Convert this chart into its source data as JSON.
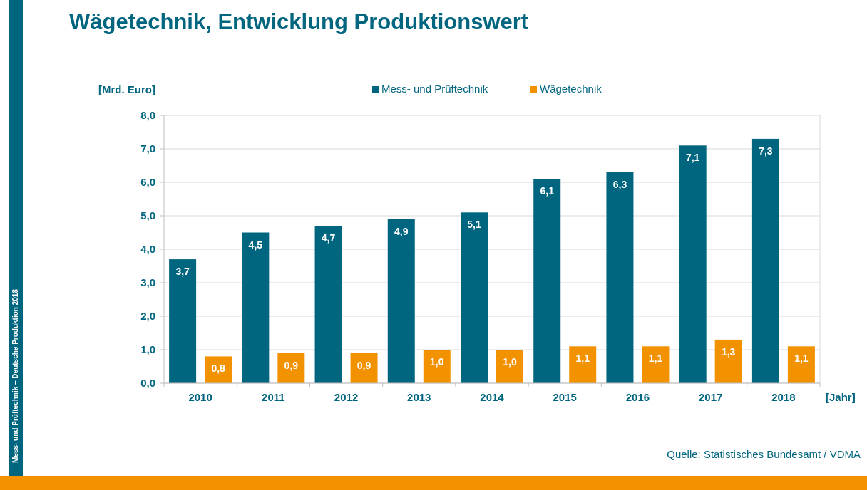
{
  "chart_data": {
    "type": "bar",
    "title": "Wägetechnik, Entwicklung Produktionswert",
    "xlabel": "[Jahr]",
    "ylabel": "[Mrd. Euro]",
    "categories": [
      "2010",
      "2011",
      "2012",
      "2013",
      "2014",
      "2015",
      "2016",
      "2017",
      "2018"
    ],
    "series": [
      {
        "name": "Mess- und Prüftechnik",
        "color": "#00657f",
        "values": [
          3.7,
          4.5,
          4.7,
          4.9,
          5.1,
          6.1,
          6.3,
          7.1,
          7.3
        ],
        "value_labels": [
          "3,7",
          "4,5",
          "4,7",
          "4,9",
          "5,1",
          "6,1",
          "6,3",
          "7,1",
          "7,3"
        ]
      },
      {
        "name": "Wägetechnik",
        "color": "#f39200",
        "values": [
          0.8,
          0.9,
          0.9,
          1.0,
          1.0,
          1.1,
          1.1,
          1.3,
          1.1
        ],
        "value_labels": [
          "0,8",
          "0,9",
          "0,9",
          "1,0",
          "1,0",
          "1,1",
          "1,1",
          "1,3",
          "1,1"
        ]
      }
    ],
    "ylim": [
      0,
      8
    ],
    "yticks": [
      {
        "value": 0,
        "label": "0,0"
      },
      {
        "value": 1,
        "label": "1,0"
      },
      {
        "value": 2,
        "label": "2,0"
      },
      {
        "value": 3,
        "label": "3,0"
      },
      {
        "value": 4,
        "label": "4,0"
      },
      {
        "value": 5,
        "label": "5,0"
      },
      {
        "value": 6,
        "label": "6,0"
      },
      {
        "value": 7,
        "label": "7,0"
      },
      {
        "value": 8,
        "label": "8,0"
      }
    ],
    "grid": "y",
    "legend": "top",
    "annotations": [
      "Quelle: Statistisches Bundesamt / VDMA",
      "Mess- und Prüftechnik – Deutsche Produktion 2018"
    ]
  }
}
